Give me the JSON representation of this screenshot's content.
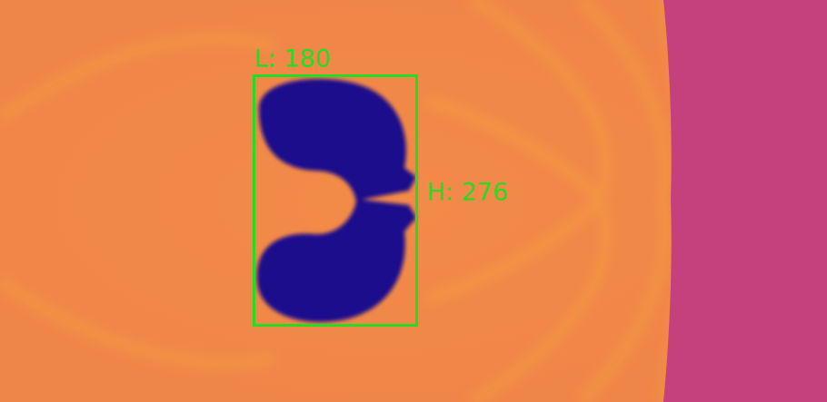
{
  "annotations": {
    "length_label": "L: 180",
    "height_label": "H: 276"
  }
}
